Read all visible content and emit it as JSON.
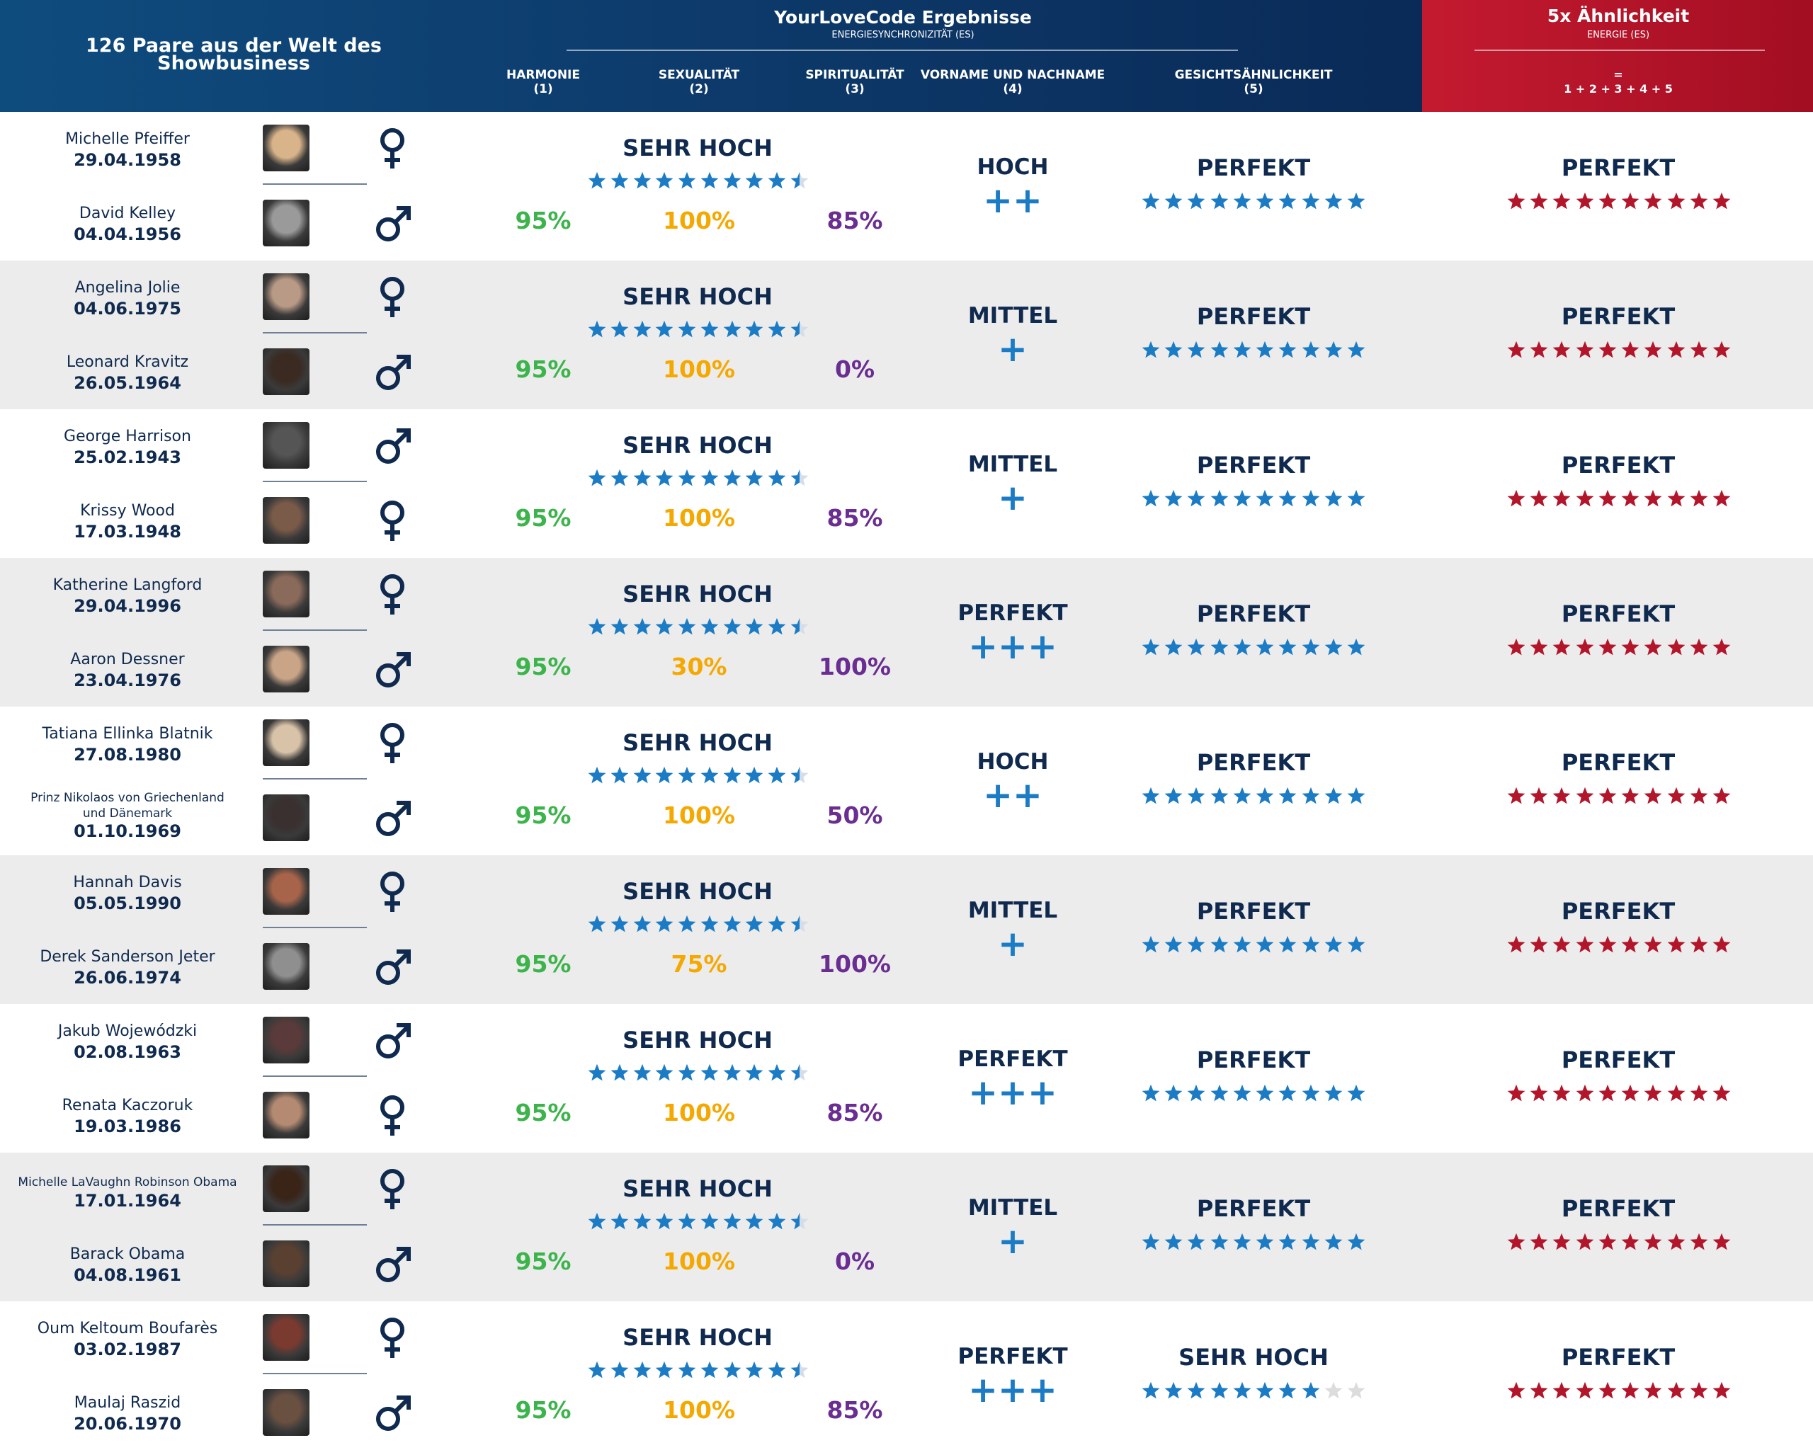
{
  "header": {
    "title": "126 Paare aus der Welt des Showbusiness",
    "yourlovecode": "YourLoveCode Ergebnisse",
    "es_subtitle": "ENERGIESYNCHRONIZITÄT (ES)",
    "columns": [
      {
        "name": "HARMONIE",
        "num": "(1)"
      },
      {
        "name": "SEXUALITÄT",
        "num": "(2)"
      },
      {
        "name": "SPIRITUALITÄT",
        "num": "(3)"
      },
      {
        "name": "VORNAME UND NACHNAME",
        "num": "(4)"
      },
      {
        "name": "GESICHTSÄHNLICHKEIT",
        "num": "(5)"
      }
    ],
    "five_x": "5x Ähnlichkeit",
    "energie": "ENERGIE (ES)",
    "eq_sign": "=",
    "sum": "1 + 2 + 3 + 4 + 5"
  },
  "colors": {
    "header_blue": "#0d3c6d",
    "header_red": "#b3152a",
    "star_blue": "#1b7cc5",
    "star_red": "#b3152a",
    "harmonie_green": "#3cb44b",
    "sexualitaet_orange": "#f5a800",
    "spiritualitaet_purple": "#6a2d91",
    "shade_gray": "#ececec"
  },
  "pairs": [
    {
      "p1": {
        "name": "Michelle Pfeiffer",
        "date": "29.04.1958",
        "gender": "female",
        "photo": "#d9b48a"
      },
      "p2": {
        "name": "David Kelley",
        "date": "04.04.1956",
        "gender": "male",
        "photo": "#9a9a9a"
      },
      "es_label": "SEHR HOCH",
      "es_stars": 9.5,
      "harmonie": "95%",
      "sexualitaet": "100%",
      "spiritualitaet": "85%",
      "name_label": "HOCH",
      "name_plus": "++",
      "face_label": "PERFEKT",
      "face_stars": 10,
      "total_label": "PERFEKT",
      "total_stars": 10
    },
    {
      "p1": {
        "name": "Angelina Jolie",
        "date": "04.06.1975",
        "gender": "female",
        "photo": "#b99a86"
      },
      "p2": {
        "name": "Leonard Kravitz",
        "date": "26.05.1964",
        "gender": "male",
        "photo": "#3a2a22"
      },
      "es_label": "SEHR HOCH",
      "es_stars": 9.5,
      "harmonie": "95%",
      "sexualitaet": "100%",
      "spiritualitaet": "0%",
      "name_label": "MITTEL",
      "name_plus": "+",
      "face_label": "PERFEKT",
      "face_stars": 10,
      "total_label": "PERFEKT",
      "total_stars": 10
    },
    {
      "p1": {
        "name": "George Harrison",
        "date": "25.02.1943",
        "gender": "male",
        "photo": "#555555"
      },
      "p2": {
        "name": "Krissy Wood",
        "date": "17.03.1948",
        "gender": "female",
        "photo": "#7a5a48"
      },
      "es_label": "SEHR HOCH",
      "es_stars": 9.5,
      "harmonie": "95%",
      "sexualitaet": "100%",
      "spiritualitaet": "85%",
      "name_label": "MITTEL",
      "name_plus": "+",
      "face_label": "PERFEKT",
      "face_stars": 10,
      "total_label": "PERFEKT",
      "total_stars": 10
    },
    {
      "p1": {
        "name": "Katherine Langford",
        "date": "29.04.1996",
        "gender": "female",
        "photo": "#8a6a5a"
      },
      "p2": {
        "name": "Aaron Dessner",
        "date": "23.04.1976",
        "gender": "male",
        "photo": "#c9a487"
      },
      "es_label": "SEHR HOCH",
      "es_stars": 9.5,
      "harmonie": "95%",
      "sexualitaet": "30%",
      "spiritualitaet": "100%",
      "name_label": "PERFEKT",
      "name_plus": "+++",
      "face_label": "PERFEKT",
      "face_stars": 10,
      "total_label": "PERFEKT",
      "total_stars": 10
    },
    {
      "p1": {
        "name": "Tatiana Ellinka Blatnik",
        "date": "27.08.1980",
        "gender": "female",
        "photo": "#d8c2a8"
      },
      "p2": {
        "name": "Prinz Nikolaos von Griechenland und Dänemark",
        "date": "01.10.1969",
        "gender": "male",
        "photo": "#3a3030"
      },
      "es_label": "SEHR HOCH",
      "es_stars": 9.5,
      "harmonie": "95%",
      "sexualitaet": "100%",
      "spiritualitaet": "50%",
      "name_label": "HOCH",
      "name_plus": "++",
      "face_label": "PERFEKT",
      "face_stars": 10,
      "total_label": "PERFEKT",
      "total_stars": 10
    },
    {
      "p1": {
        "name": "Hannah Davis",
        "date": "05.05.1990",
        "gender": "female",
        "photo": "#a8644a"
      },
      "p2": {
        "name": "Derek Sanderson Jeter",
        "date": "26.06.1974",
        "gender": "male",
        "photo": "#8f8f8f"
      },
      "es_label": "SEHR HOCH",
      "es_stars": 9.5,
      "harmonie": "95%",
      "sexualitaet": "75%",
      "spiritualitaet": "100%",
      "name_label": "MITTEL",
      "name_plus": "+",
      "face_label": "PERFEKT",
      "face_stars": 10,
      "total_label": "PERFEKT",
      "total_stars": 10
    },
    {
      "p1": {
        "name": "Jakub Wojewódzki",
        "date": "02.08.1963",
        "gender": "male",
        "photo": "#5a3a3a"
      },
      "p2": {
        "name": "Renata Kaczoruk",
        "date": "19.03.1986",
        "gender": "female",
        "photo": "#b48a72"
      },
      "es_label": "SEHR HOCH",
      "es_stars": 9.5,
      "harmonie": "95%",
      "sexualitaet": "100%",
      "spiritualitaet": "85%",
      "name_label": "PERFEKT",
      "name_plus": "+++",
      "face_label": "PERFEKT",
      "face_stars": 10,
      "total_label": "PERFEKT",
      "total_stars": 10
    },
    {
      "p1": {
        "name": "Michelle LaVaughn Robinson Obama",
        "date": "17.01.1964",
        "gender": "female",
        "photo": "#3a2418"
      },
      "p2": {
        "name": "Barack Obama",
        "date": "04.08.1961",
        "gender": "male",
        "photo": "#5a4030"
      },
      "es_label": "SEHR HOCH",
      "es_stars": 9.5,
      "harmonie": "95%",
      "sexualitaet": "100%",
      "spiritualitaet": "0%",
      "name_label": "MITTEL",
      "name_plus": "+",
      "face_label": "PERFEKT",
      "face_stars": 10,
      "total_label": "PERFEKT",
      "total_stars": 10
    },
    {
      "p1": {
        "name": "Oum Keltoum Boufarès",
        "date": "03.02.1987",
        "gender": "female",
        "photo": "#7a3a30"
      },
      "p2": {
        "name": "Maulaj Raszid",
        "date": "20.06.1970",
        "gender": "male",
        "photo": "#6a5040"
      },
      "es_label": "SEHR HOCH",
      "es_stars": 9.5,
      "harmonie": "95%",
      "sexualitaet": "100%",
      "spiritualitaet": "85%",
      "name_label": "PERFEKT",
      "name_plus": "+++",
      "face_label": "SEHR HOCH",
      "face_stars": 8,
      "total_label": "PERFEKT",
      "total_stars": 10
    }
  ]
}
